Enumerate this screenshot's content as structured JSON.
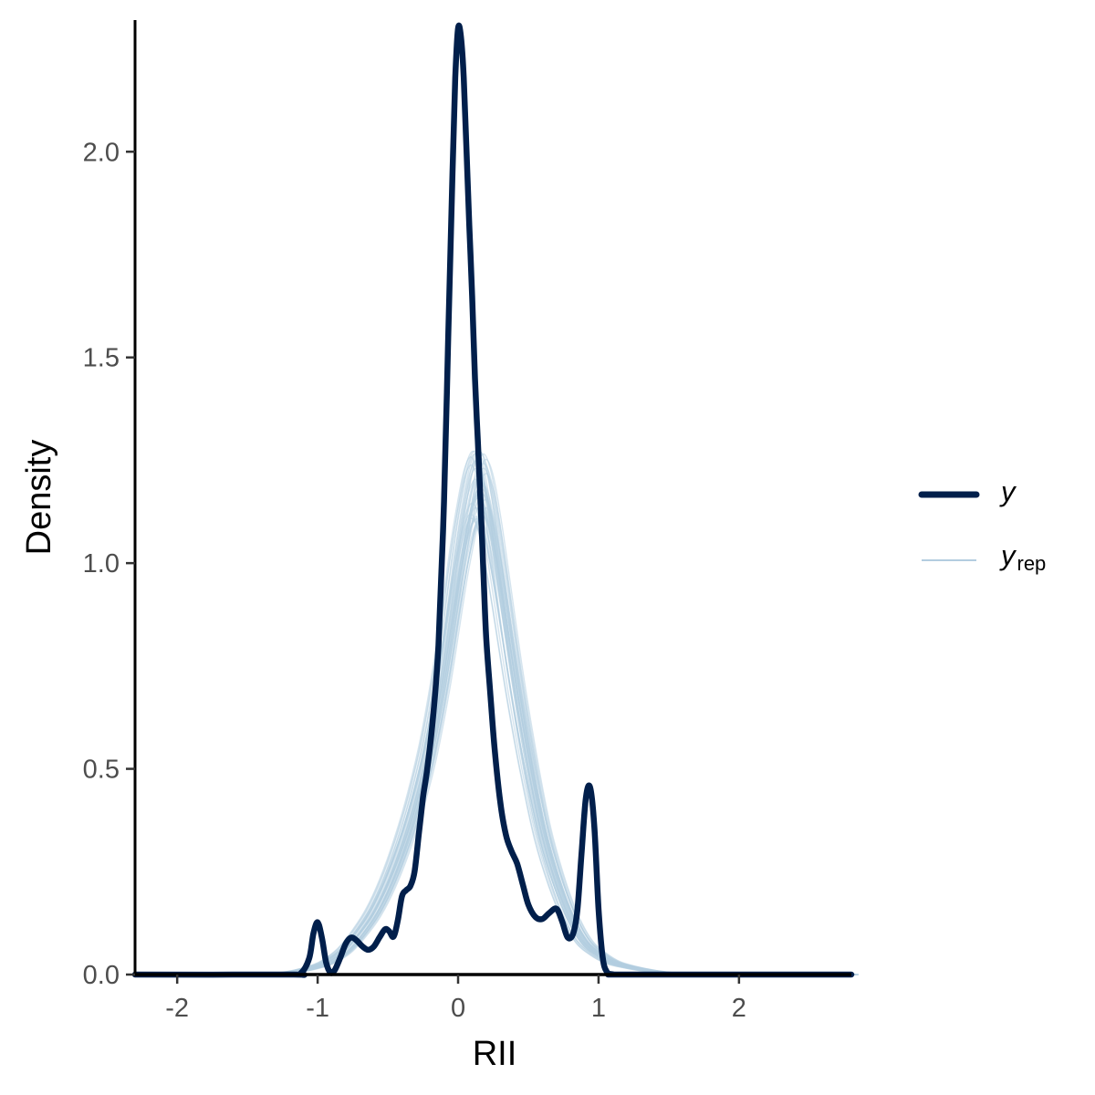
{
  "chart_data": {
    "type": "line",
    "title": "",
    "xlabel": "RII",
    "ylabel": "Density",
    "xlim": [
      -2.3,
      2.8
    ],
    "ylim": [
      0,
      2.32
    ],
    "x_ticks": [
      -2,
      -1,
      0,
      1,
      2
    ],
    "x_tick_labels": [
      "-2",
      "-1",
      "0",
      "1",
      "2"
    ],
    "y_ticks": [
      0,
      0.5,
      1,
      1.5,
      2
    ],
    "y_tick_labels": [
      "0.0",
      "0.5",
      "1.0",
      "1.5",
      "2.0"
    ],
    "grid": false,
    "legend_position": "right",
    "colors": {
      "y": "#011f4b",
      "yrep": "#b3cde0"
    },
    "series": [
      {
        "name": "y",
        "role": "observed",
        "x": [
          -2.3,
          -1.2,
          -1.12,
          -1.06,
          -1.03,
          -1.0,
          -0.97,
          -0.94,
          -0.91,
          -0.88,
          -0.84,
          -0.8,
          -0.76,
          -0.72,
          -0.68,
          -0.64,
          -0.6,
          -0.56,
          -0.52,
          -0.49,
          -0.46,
          -0.43,
          -0.4,
          -0.37,
          -0.34,
          -0.31,
          -0.28,
          -0.25,
          -0.22,
          -0.18,
          -0.14,
          -0.1,
          -0.07,
          -0.04,
          -0.02,
          0.0,
          0.02,
          0.04,
          0.06,
          0.08,
          0.1,
          0.12,
          0.14,
          0.16,
          0.18,
          0.2,
          0.23,
          0.26,
          0.3,
          0.34,
          0.38,
          0.42,
          0.46,
          0.5,
          0.55,
          0.6,
          0.65,
          0.7,
          0.74,
          0.78,
          0.82,
          0.85,
          0.88,
          0.91,
          0.94,
          0.97,
          1.0,
          1.03,
          1.06,
          1.09,
          1.12,
          1.15,
          1.2,
          2.8
        ],
        "y": [
          0.0,
          0.0,
          0.003,
          0.04,
          0.1,
          0.127,
          0.09,
          0.03,
          0.005,
          0.01,
          0.04,
          0.075,
          0.09,
          0.082,
          0.068,
          0.06,
          0.068,
          0.09,
          0.11,
          0.105,
          0.092,
          0.13,
          0.19,
          0.205,
          0.215,
          0.25,
          0.34,
          0.43,
          0.5,
          0.62,
          0.8,
          1.15,
          1.55,
          1.95,
          2.18,
          2.3,
          2.28,
          2.18,
          2.0,
          1.82,
          1.65,
          1.45,
          1.3,
          1.15,
          0.98,
          0.82,
          0.68,
          0.55,
          0.42,
          0.34,
          0.3,
          0.27,
          0.22,
          0.17,
          0.14,
          0.135,
          0.15,
          0.16,
          0.13,
          0.09,
          0.1,
          0.16,
          0.3,
          0.43,
          0.455,
          0.36,
          0.16,
          0.04,
          0.006,
          0.001,
          0.0,
          0.0,
          0.0,
          0.0
        ]
      },
      {
        "name": "yrep",
        "role": "replicated",
        "x": [
          -2.3,
          -1.5,
          -1.2,
          -1.0,
          -0.9,
          -0.8,
          -0.7,
          -0.6,
          -0.5,
          -0.4,
          -0.3,
          -0.2,
          -0.1,
          0.0,
          0.05,
          0.1,
          0.15,
          0.2,
          0.25,
          0.3,
          0.4,
          0.5,
          0.6,
          0.7,
          0.8,
          0.9,
          1.0,
          1.1,
          1.2,
          1.35,
          1.5,
          1.8,
          2.8
        ],
        "y": [
          0.0,
          0.0,
          0.005,
          0.02,
          0.035,
          0.06,
          0.1,
          0.15,
          0.22,
          0.31,
          0.42,
          0.56,
          0.75,
          0.98,
          1.08,
          1.16,
          1.19,
          1.15,
          1.06,
          0.95,
          0.72,
          0.52,
          0.35,
          0.23,
          0.14,
          0.08,
          0.05,
          0.03,
          0.02,
          0.01,
          0.004,
          0.0,
          0.0
        ]
      }
    ]
  },
  "legend": {
    "y_label": "y",
    "yrep_main": "y",
    "yrep_sub": "rep"
  }
}
